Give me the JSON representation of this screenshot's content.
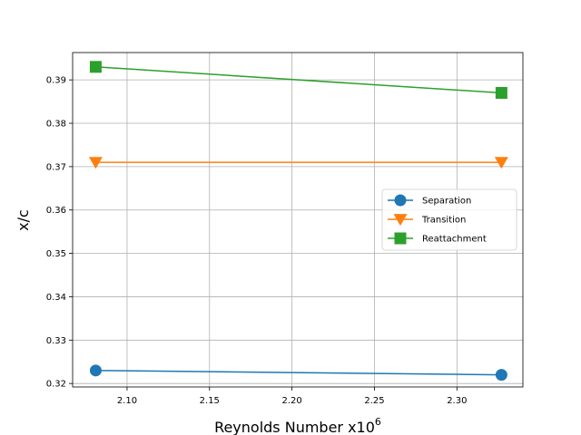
{
  "chart_data": {
    "type": "line",
    "title": "",
    "xlabel": "Reynolds Number x10",
    "xlabel_superscript": "6",
    "ylabel": "x/c",
    "xlim": [
      2.067,
      2.34
    ],
    "ylim": [
      0.3192,
      0.3963
    ],
    "xticks": [
      2.1,
      2.15,
      2.2,
      2.25,
      2.3
    ],
    "xtick_labels": [
      "2.10",
      "2.15",
      "2.20",
      "2.25",
      "2.30"
    ],
    "yticks": [
      0.32,
      0.33,
      0.34,
      0.35,
      0.36,
      0.37,
      0.38,
      0.39
    ],
    "ytick_labels": [
      "0.32",
      "0.33",
      "0.34",
      "0.35",
      "0.36",
      "0.37",
      "0.38",
      "0.39"
    ],
    "grid": true,
    "legend_position": "center-right",
    "x": [
      2.081,
      2.327
    ],
    "series": [
      {
        "name": "Separation",
        "values": [
          0.323,
          0.322
        ],
        "color": "#1f77b4",
        "marker": "circle"
      },
      {
        "name": "Transition",
        "values": [
          0.371,
          0.371
        ],
        "color": "#ff7f0e",
        "marker": "triangle-down"
      },
      {
        "name": "Reattachment",
        "values": [
          0.393,
          0.387
        ],
        "color": "#2ca02c",
        "marker": "square"
      }
    ]
  }
}
